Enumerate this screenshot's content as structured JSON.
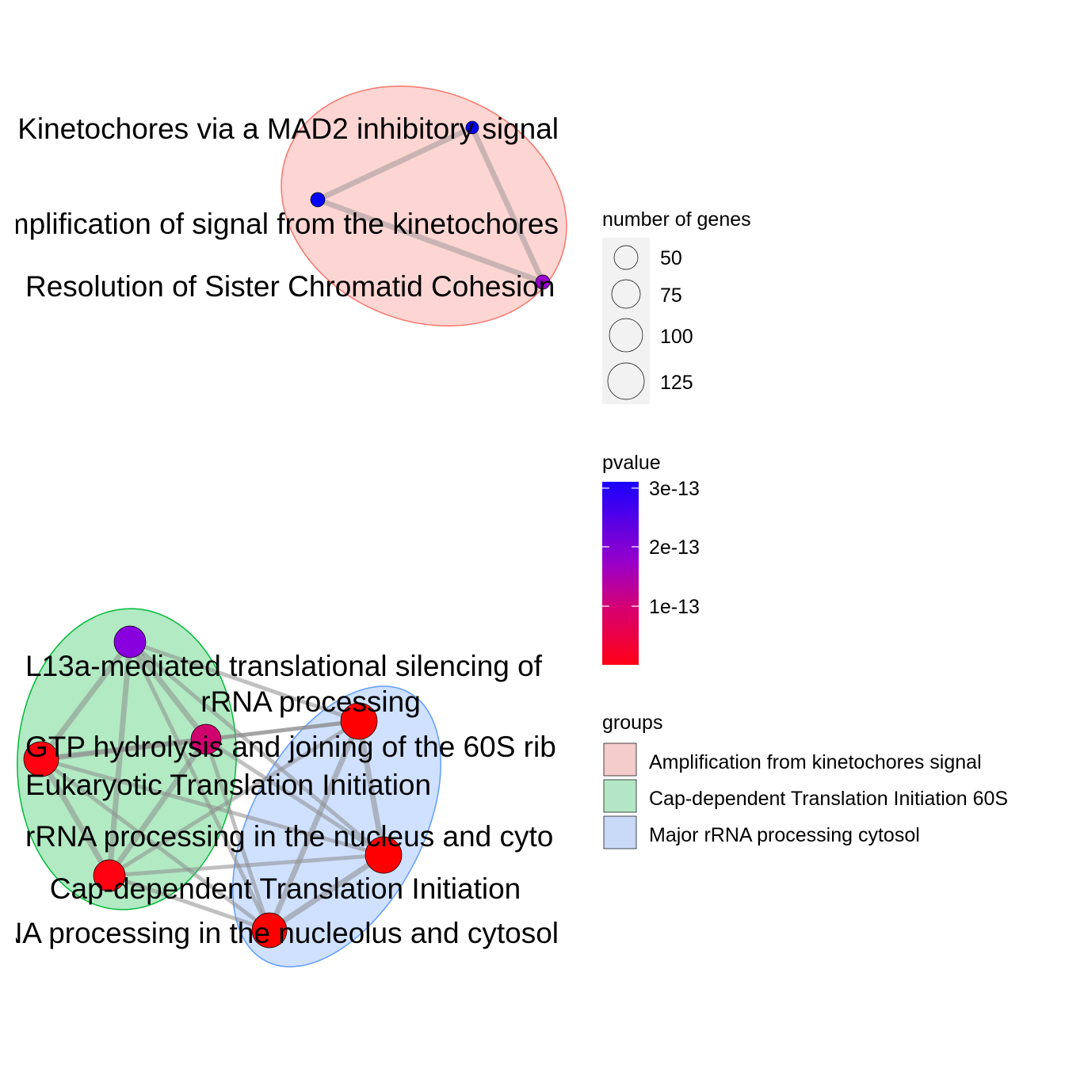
{
  "network": {
    "groups": [
      {
        "name": "Amplification from kinetochores signal",
        "fill": "#f8766d",
        "stroke": "#f8766d"
      },
      {
        "name": "Cap-dependent Translation Initiation 60S",
        "fill": "#00ba38",
        "stroke": "#00ba38"
      },
      {
        "name": "Major rRNA processing cytosol",
        "fill": "#619cff",
        "stroke": "#619cff"
      }
    ],
    "nodes": [
      {
        "id": "mad2",
        "label": "Kinetochores via a MAD2  inhibitory signal",
        "group": 0,
        "pvalue": 3e-13
      },
      {
        "id": "amp",
        "label": "Amplification of signal from the kinetochores",
        "group": 0,
        "pvalue": 3e-13
      },
      {
        "id": "sister",
        "label": "Resolution of Sister Chromatid Cohesion",
        "group": 0,
        "pvalue": 2e-13
      },
      {
        "id": "l13a",
        "label": "L13a-mediated translational silencing of",
        "group": 1,
        "pvalue": 2.5e-13
      },
      {
        "id": "gtp",
        "label": "GTP hydrolysis and joining of the 60S rib",
        "group": 1,
        "pvalue": 1.2e-13
      },
      {
        "id": "eif",
        "label": "Eukaryotic Translation Initiation",
        "group": 1,
        "pvalue": 1e-14
      },
      {
        "id": "capdep",
        "label": "Cap-dependent Translation Initiation",
        "group": 1,
        "pvalue": 1e-14
      },
      {
        "id": "rrna",
        "label": "rRNA processing",
        "group": 2,
        "pvalue": 1e-14
      },
      {
        "id": "rrnanuc",
        "label": "rRNA processing in the nucleus and cyto",
        "group": 2,
        "pvalue": 1e-14
      },
      {
        "id": "rrnanucleolus",
        "label": "rRNA processing in the nucleolus and cytosol",
        "group": 2,
        "pvalue": 1e-14
      }
    ],
    "edges": [
      [
        "mad2",
        "amp"
      ],
      [
        "mad2",
        "sister"
      ],
      [
        "amp",
        "sister"
      ],
      [
        "l13a",
        "gtp"
      ],
      [
        "l13a",
        "eif"
      ],
      [
        "l13a",
        "capdep"
      ],
      [
        "l13a",
        "rrna"
      ],
      [
        "l13a",
        "rrnanuc"
      ],
      [
        "l13a",
        "rrnanucleolus"
      ],
      [
        "gtp",
        "eif"
      ],
      [
        "gtp",
        "capdep"
      ],
      [
        "gtp",
        "rrna"
      ],
      [
        "gtp",
        "rrnanuc"
      ],
      [
        "gtp",
        "rrnanucleolus"
      ],
      [
        "eif",
        "capdep"
      ],
      [
        "eif",
        "rrna"
      ],
      [
        "eif",
        "rrnanuc"
      ],
      [
        "eif",
        "rrnanucleolus"
      ],
      [
        "capdep",
        "rrna"
      ],
      [
        "capdep",
        "rrnanuc"
      ],
      [
        "capdep",
        "rrnanucleolus"
      ],
      [
        "rrna",
        "rrnanuc"
      ],
      [
        "rrna",
        "rrnanucleolus"
      ],
      [
        "rrnanuc",
        "rrnanucleolus"
      ]
    ]
  },
  "labels": {
    "mad2": "Kinetochores via a MAD2  inhibitory signal",
    "amp": "Amplification of signal from the kinetochores",
    "sister": "Resolution of Sister Chromatid Cohesion",
    "l13a": "L13a-mediated translational silencing of",
    "rrna": "rRNA processing",
    "gtp": "GTP hydrolysis and joining of the 60S rib",
    "eif": "Eukaryotic Translation Initiation",
    "rrnanuc": "rRNA processing in the nucleus and cyto",
    "capdep": "Cap-dependent Translation Initiation",
    "rrnanucleolus": "rRNA processing in the nucleolus and cytosol"
  },
  "legend": {
    "size_title": "number of genes",
    "size_breaks": [
      "50",
      "75",
      "100",
      "125"
    ],
    "color_title": "pvalue",
    "color_breaks": [
      "3e-13",
      "2e-13",
      "1e-13"
    ],
    "color_low": "#ff0000",
    "color_high": "#0000ff",
    "groups_title": "groups",
    "group_items": [
      {
        "label": "Amplification from kinetochores signal",
        "color": "#f4cccc"
      },
      {
        "label": "Cap-dependent Translation Initiation 60S",
        "color": "#b3e6c5"
      },
      {
        "label": "Major rRNA processing cytosol",
        "color": "#c9daf8"
      }
    ]
  }
}
